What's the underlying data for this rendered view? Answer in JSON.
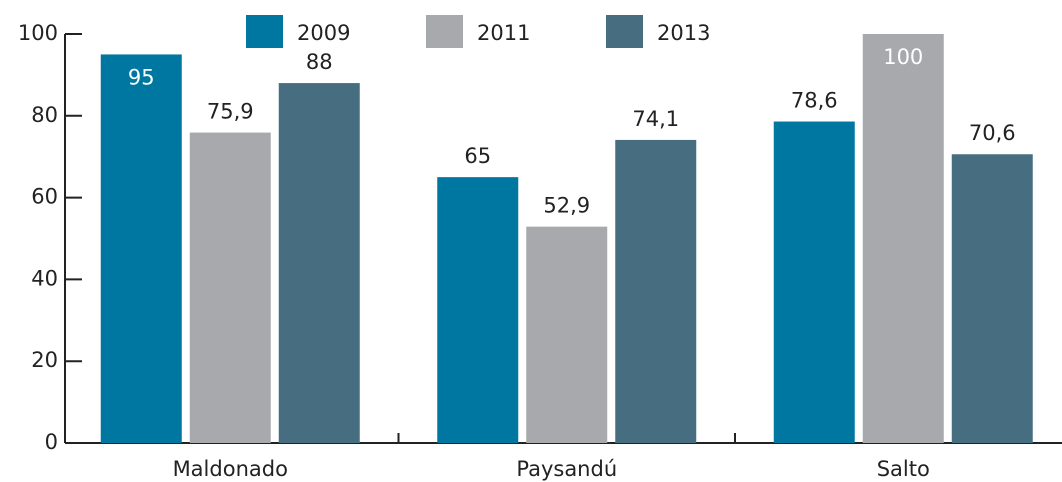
{
  "chart_data": {
    "type": "bar",
    "categories": [
      "Maldonado",
      "Paysandú",
      "Salto"
    ],
    "series": [
      {
        "name": "2009",
        "color": "#0077a0",
        "values": [
          95,
          65,
          78.6
        ],
        "value_labels": [
          "95",
          "65",
          "78,6"
        ]
      },
      {
        "name": "2011",
        "color": "#a7a9ac",
        "values": [
          75.9,
          52.9,
          100
        ],
        "value_labels": [
          "75,9",
          "52,9",
          "100"
        ]
      },
      {
        "name": "2013",
        "color": "#466e80",
        "values": [
          88,
          74.1,
          70.6
        ],
        "value_labels": [
          "88",
          "74,1",
          "70,6"
        ]
      }
    ],
    "ylim": [
      0,
      100
    ],
    "yticks": [
      0,
      20,
      40,
      60,
      80,
      100
    ],
    "grid": false,
    "legend": "top"
  }
}
